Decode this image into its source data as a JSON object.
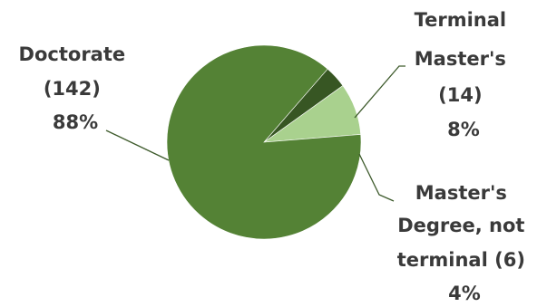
{
  "chart_data": {
    "type": "pie",
    "title": "",
    "slices": [
      {
        "label": "Doctorate",
        "count": 142,
        "percent": 88,
        "count_text": "(142)",
        "percent_text": "88%",
        "label_lines": [
          "Doctorate",
          "(142)",
          "88%"
        ],
        "color": "#548235"
      },
      {
        "label": "Terminal Master's",
        "count": 14,
        "percent": 8,
        "count_text": "(14)",
        "percent_text": "8%",
        "label_lines": [
          "Terminal",
          "Master's",
          "(14)",
          "8%"
        ],
        "color": "#a9d18e"
      },
      {
        "label": "Master's Degree, not terminal",
        "count": 6,
        "percent": 4,
        "count_text": "(6)",
        "percent_text": "4%",
        "label_lines": [
          "Master's",
          "Degree, not",
          "terminal (6)",
          "4%"
        ],
        "color": "#375623"
      }
    ],
    "legend": "none"
  }
}
